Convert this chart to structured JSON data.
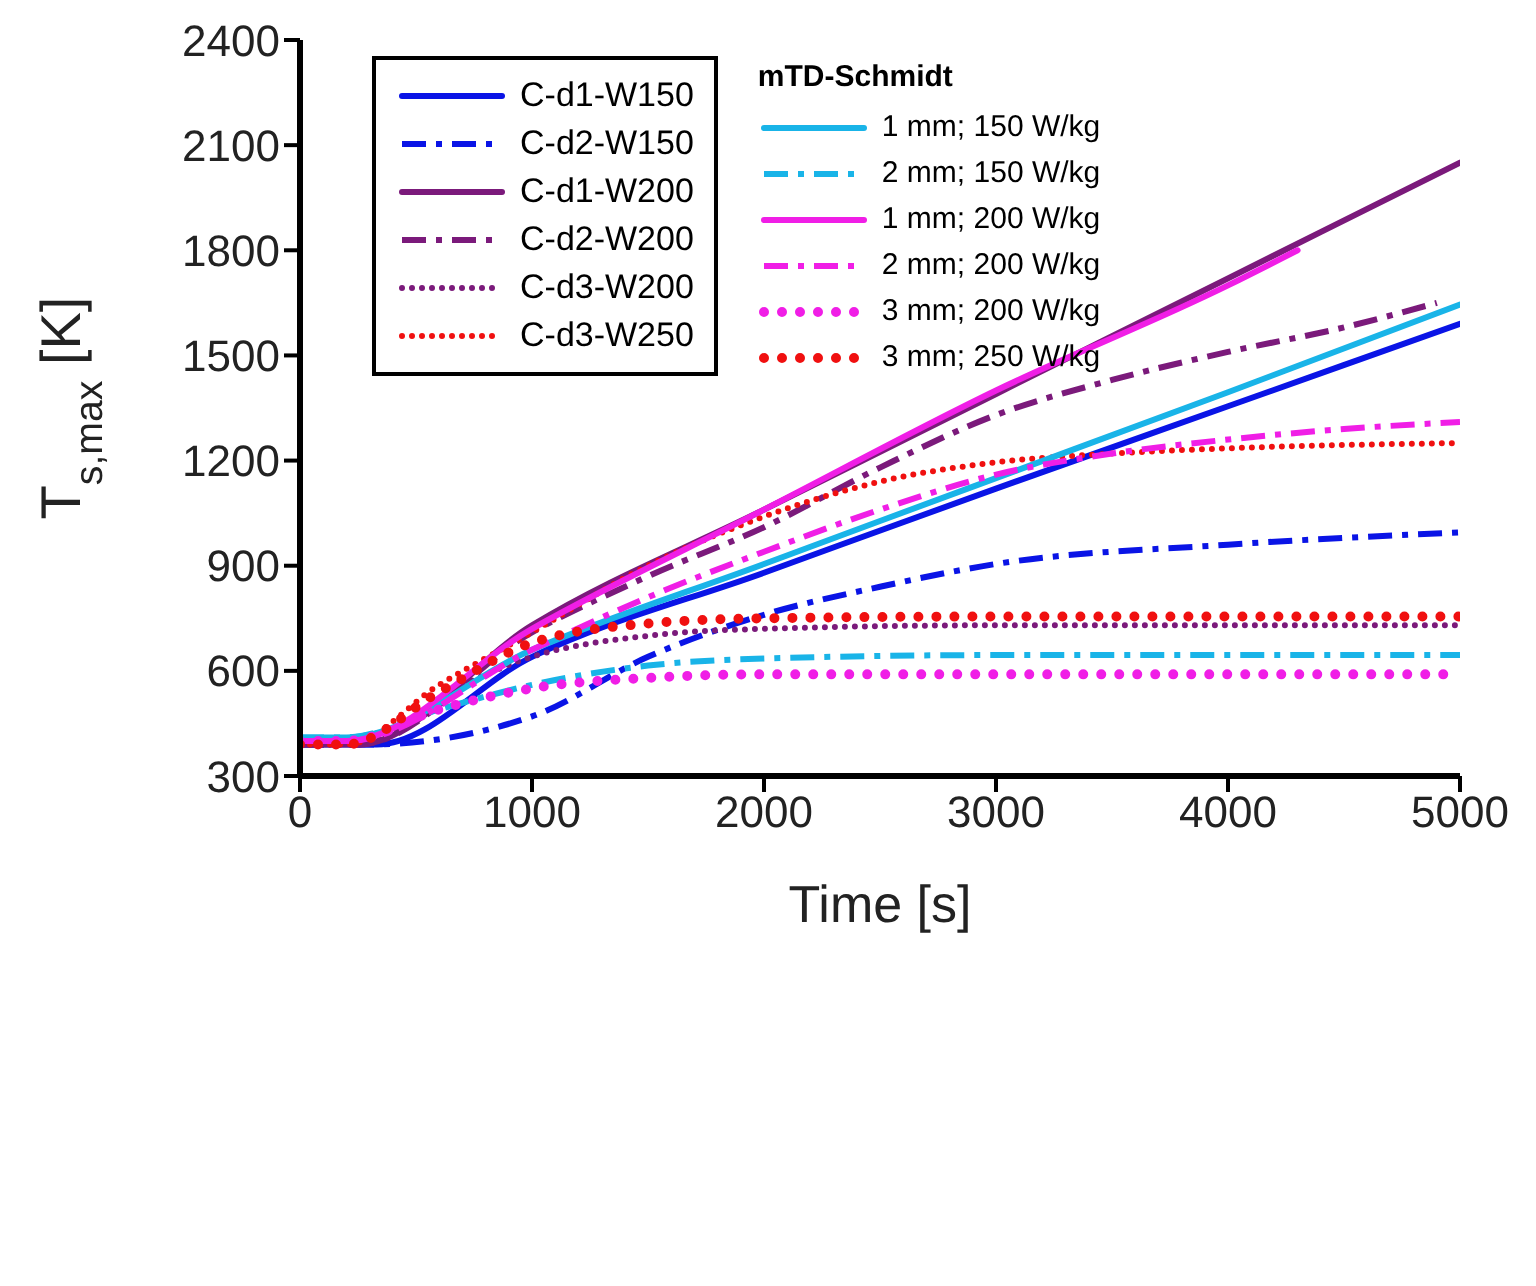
{
  "chart_data": {
    "type": "line",
    "xlabel": "Time [s]",
    "ylabel": "T$_{s,max}$ [K]",
    "legend_title": "mTD-Schmidt",
    "xlim": [
      0,
      5000
    ],
    "xticks": [
      0,
      1000,
      2000,
      3000,
      4000,
      5000
    ],
    "ylim": [
      300,
      2400
    ],
    "yticks": [
      300,
      600,
      900,
      1200,
      1500,
      1800,
      2100,
      2400
    ],
    "legend": "top left",
    "grid": false,
    "marker": "none",
    "series": [
      {
        "name": "C-d1-W150",
        "color": "#0a14e6",
        "line_style": "solid",
        "x": [
          0,
          330,
          1000,
          2000,
          3000,
          4000,
          5000
        ],
        "values": [
          390,
          390,
          640,
          880,
          1120,
          1355,
          1590
        ]
      },
      {
        "name": "C-d2-W150",
        "color": "#0a14e6",
        "line_style": "dashed",
        "x": [
          0,
          300,
          1000,
          1500,
          2000,
          2500,
          3000,
          4000,
          5000
        ],
        "values": [
          390,
          390,
          470,
          640,
          760,
          840,
          905,
          960,
          995
        ]
      },
      {
        "name": "C-d1-W200",
        "color": "#7b1a7b",
        "line_style": "solid",
        "x": [
          0,
          250,
          1000,
          2000,
          3000,
          4000,
          5000
        ],
        "values": [
          390,
          390,
          730,
          1060,
          1390,
          1720,
          2050
        ]
      },
      {
        "name": "C-d2-W200",
        "color": "#7b1a7b",
        "line_style": "dashed",
        "x": [
          0,
          250,
          1000,
          1500,
          2000,
          2500,
          3000,
          3500,
          4000,
          4500,
          4900
        ],
        "values": [
          390,
          390,
          710,
          870,
          1010,
          1180,
          1330,
          1430,
          1510,
          1580,
          1650
        ]
      },
      {
        "name": "C-d3-W200",
        "color": "#7b1a7b",
        "line_style": "dotted",
        "x": [
          0,
          250,
          700,
          1000,
          1500,
          2000,
          3000,
          4000,
          5000
        ],
        "values": [
          390,
          390,
          560,
          640,
          700,
          720,
          730,
          730,
          730
        ]
      },
      {
        "name": "C-d3-W250",
        "color": "#f01010",
        "line_style": "dotted",
        "x": [
          0,
          200,
          600,
          1000,
          1500,
          2000,
          2500,
          3000,
          3500,
          4000,
          5000
        ],
        "values": [
          390,
          390,
          560,
          710,
          900,
          1040,
          1140,
          1195,
          1220,
          1235,
          1250
        ]
      },
      {
        "name": "1 mm; 150 W/kg",
        "color": "#19b4e8",
        "line_style": "solid",
        "x": [
          0,
          200,
          1000,
          2000,
          3000,
          4000,
          5000
        ],
        "values": [
          410,
          410,
          660,
          905,
          1150,
          1395,
          1645
        ]
      },
      {
        "name": "2 mm; 150 W/kg",
        "color": "#19b4e8",
        "line_style": "dashed",
        "x": [
          0,
          200,
          600,
          1000,
          1500,
          2000,
          3000,
          4000,
          5000
        ],
        "values": [
          410,
          410,
          490,
          560,
          615,
          635,
          645,
          645,
          645
        ]
      },
      {
        "name": "1 mm; 200 W/kg",
        "color": "#f01ee6",
        "line_style": "solid",
        "x": [
          0,
          200,
          1000,
          2000,
          3000,
          4000,
          4300
        ],
        "values": [
          400,
          400,
          720,
          1060,
          1400,
          1700,
          1800
        ]
      },
      {
        "name": "2 mm; 200 W/kg",
        "color": "#f01ee6",
        "line_style": "dashed",
        "x": [
          0,
          200,
          1000,
          1500,
          2000,
          2500,
          3000,
          3500,
          4000,
          4500,
          5000
        ],
        "values": [
          400,
          400,
          660,
          810,
          940,
          1060,
          1160,
          1220,
          1260,
          1290,
          1310
        ]
      },
      {
        "name": "3 mm; 200 W/kg",
        "color": "#f01ee6",
        "line_style": "dotted",
        "x": [
          0,
          200,
          600,
          1000,
          1500,
          2000,
          3000,
          4000,
          5000
        ],
        "values": [
          400,
          400,
          490,
          550,
          580,
          590,
          590,
          590,
          590
        ]
      },
      {
        "name": "3 mm; 250 W/kg",
        "color": "#f01010",
        "line_style": "dotted",
        "x": [
          0,
          200,
          600,
          1000,
          1500,
          2000,
          3000,
          4000,
          5000
        ],
        "values": [
          390,
          390,
          540,
          680,
          735,
          750,
          755,
          755,
          755
        ]
      }
    ]
  }
}
